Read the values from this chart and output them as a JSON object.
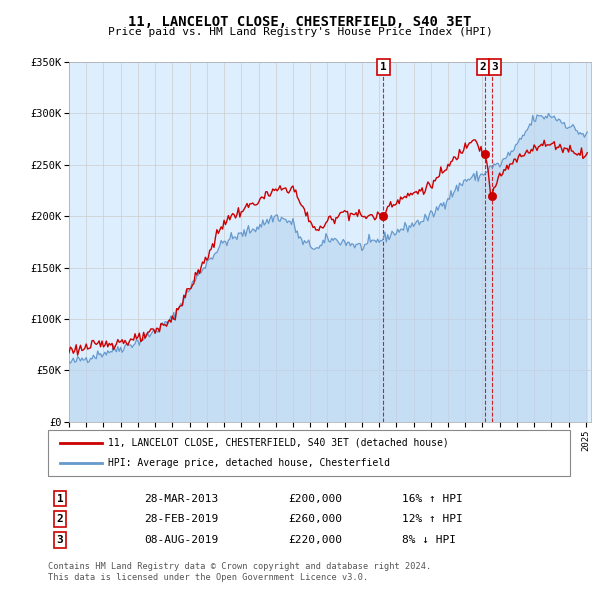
{
  "title": "11, LANCELOT CLOSE, CHESTERFIELD, S40 3ET",
  "subtitle": "Price paid vs. HM Land Registry's House Price Index (HPI)",
  "x_start_year": 1995,
  "x_end_year": 2025,
  "y_min": 0,
  "y_max": 350000,
  "y_ticks": [
    0,
    50000,
    100000,
    150000,
    200000,
    250000,
    300000,
    350000
  ],
  "y_tick_labels": [
    "£0",
    "£50K",
    "£100K",
    "£150K",
    "£200K",
    "£250K",
    "£300K",
    "£350K"
  ],
  "sale_color": "#cc0000",
  "hpi_color": "#6699cc",
  "hpi_fill_color": "#ddeeff",
  "background_color": "#ffffff",
  "grid_color": "#cccccc",
  "transaction_dates_decimal": [
    2013.25,
    2019.17,
    2019.58
  ],
  "transaction_prices": [
    200000,
    260000,
    220000
  ],
  "transaction_labels": [
    "1",
    "2",
    "3"
  ],
  "transactions": [
    {
      "label": "1",
      "date": "28-MAR-2013",
      "price": 200000,
      "pct": "16%",
      "dir": "↑"
    },
    {
      "label": "2",
      "date": "28-FEB-2019",
      "price": 260000,
      "pct": "12%",
      "dir": "↑"
    },
    {
      "label": "3",
      "date": "08-AUG-2019",
      "price": 220000,
      "pct": "8%",
      "dir": "↓"
    }
  ],
  "legend_label_red": "11, LANCELOT CLOSE, CHESTERFIELD, S40 3ET (detached house)",
  "legend_label_blue": "HPI: Average price, detached house, Chesterfield",
  "footer_line1": "Contains HM Land Registry data © Crown copyright and database right 2024.",
  "footer_line2": "This data is licensed under the Open Government Licence v3.0.",
  "hpi_key_points": {
    "1995.0": 57000,
    "1996.0": 62000,
    "1997.0": 67000,
    "1998.0": 72000,
    "1999.0": 78000,
    "2000.0": 88000,
    "2001.0": 100000,
    "2002.0": 130000,
    "2003.0": 155000,
    "2004.0": 175000,
    "2005.0": 182000,
    "2006.0": 190000,
    "2007.0": 200000,
    "2008.0": 193000,
    "2008.5": 175000,
    "2009.5": 168000,
    "2010.0": 178000,
    "2011.0": 175000,
    "2012.0": 170000,
    "2013.25": 178000,
    "2014.0": 185000,
    "2015.0": 192000,
    "2016.0": 200000,
    "2017.0": 218000,
    "2018.0": 235000,
    "2019.0": 240000,
    "2019.5": 248000,
    "2020.0": 250000,
    "2021.0": 268000,
    "2022.0": 295000,
    "2023.0": 298000,
    "2024.0": 288000,
    "2025.0": 278000
  },
  "sale_key_points": {
    "1995.0": 70000,
    "1996.0": 72000,
    "1997.0": 76000,
    "1998.0": 78000,
    "1999.0": 80000,
    "2000.0": 88000,
    "2001.0": 100000,
    "2002.0": 130000,
    "2003.0": 160000,
    "2004.0": 195000,
    "2005.0": 205000,
    "2006.0": 215000,
    "2007.0": 225000,
    "2008.0": 228000,
    "2008.5": 210000,
    "2009.0": 195000,
    "2009.5": 185000,
    "2010.0": 195000,
    "2011.0": 205000,
    "2012.0": 200000,
    "2013.25": 200000,
    "2013.5": 210000,
    "2014.0": 215000,
    "2015.0": 222000,
    "2016.0": 230000,
    "2017.0": 248000,
    "2018.0": 268000,
    "2018.5": 278000,
    "2019.0": 262000,
    "2019.17": 260000,
    "2019.5": 222000,
    "2019.6": 220000,
    "2020.0": 240000,
    "2021.0": 255000,
    "2022.0": 268000,
    "2023.0": 270000,
    "2024.0": 265000,
    "2025.0": 260000
  }
}
